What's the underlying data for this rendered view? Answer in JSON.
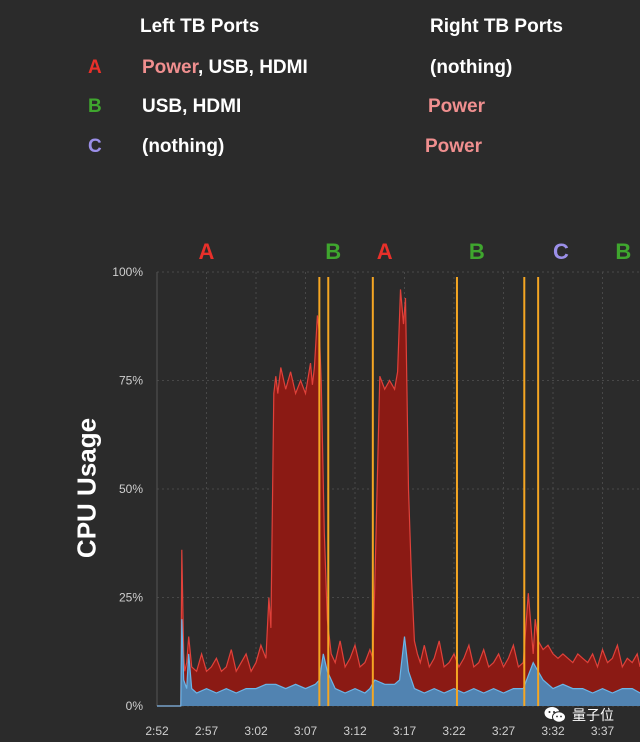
{
  "ports_table": {
    "header_left": "Left TB Ports",
    "header_right": "Right TB Ports",
    "rows": [
      {
        "letter": "A",
        "letter_color": "#e8302a",
        "left_power": "Power",
        "left_rest": ", USB, HDMI",
        "right": "(nothing)",
        "right_is_power": false
      },
      {
        "letter": "B",
        "letter_color": "#3fa62e",
        "left_power": "",
        "left_rest": "USB, HDMI",
        "right": "Power",
        "right_is_power": true
      },
      {
        "letter": "C",
        "letter_color": "#9b8fe8",
        "left_power": "",
        "left_rest": "(nothing)",
        "right": "Power",
        "right_is_power": true
      }
    ]
  },
  "watermark": {
    "text": "量子位",
    "icon": "wechat-icon"
  },
  "chart_data": {
    "type": "area",
    "ylabel": "CPU Usage",
    "x_ticks": [
      "2:52",
      "2:57",
      "3:02",
      "3:07",
      "3:12",
      "3:17",
      "3:22",
      "3:27",
      "3:32",
      "3:37"
    ],
    "y_ticks": [
      "0%",
      "25%",
      "50%",
      "75%",
      "100%"
    ],
    "ylim": [
      0,
      100
    ],
    "x_unit": "minutes since 2:52",
    "xlim": [
      0,
      48.8
    ],
    "grid": true,
    "colors": {
      "total": "#8b1a14",
      "total_line": "#e0413a",
      "base": "#4a8fc2",
      "base_line": "#6bb6e8",
      "marker": "#f5a623"
    },
    "phase_labels": [
      {
        "text": "A",
        "x": 5,
        "color": "#e8302a"
      },
      {
        "text": "B",
        "x": 17.8,
        "color": "#3fa62e"
      },
      {
        "text": "A",
        "x": 23,
        "color": "#e8302a"
      },
      {
        "text": "B",
        "x": 32.3,
        "color": "#3fa62e"
      },
      {
        "text": "C",
        "x": 40.8,
        "color": "#9b8fe8"
      },
      {
        "text": "B",
        "x": 47.1,
        "color": "#3fa62e"
      }
    ],
    "markers_x": [
      16.4,
      17.3,
      21.8,
      30.3,
      37.1,
      38.5
    ],
    "series": [
      {
        "name": "total",
        "x": [
          0,
          2.4,
          2.5,
          2.7,
          2.8,
          3,
          3.2,
          3.5,
          4,
          4.5,
          5,
          5.5,
          6,
          6.5,
          7,
          7.5,
          8,
          8.5,
          9,
          9.5,
          10,
          10.5,
          11,
          11.3,
          11.5,
          11.8,
          12,
          12.2,
          12.5,
          13,
          13.5,
          14,
          14.5,
          15,
          15.5,
          15.7,
          15.9,
          16.2,
          16.4,
          16.6,
          16.9,
          17.2,
          17.6,
          18,
          18.5,
          19,
          19.5,
          20,
          20.5,
          21,
          21.5,
          21.8,
          22,
          22.5,
          23,
          23.5,
          24,
          24.3,
          24.6,
          24.9,
          25.1,
          25.4,
          25.7,
          26,
          26.3,
          26.6,
          27,
          27.5,
          28,
          28.5,
          29,
          29.5,
          30,
          30.5,
          31,
          31.5,
          32,
          32.5,
          33,
          33.5,
          34,
          34.5,
          35,
          35.5,
          36,
          36.5,
          37,
          37.5,
          38,
          38.2,
          38.5,
          39,
          39.5,
          40,
          40.5,
          41,
          41.5,
          42,
          42.5,
          43,
          43.5,
          44,
          44.5,
          45,
          45.5,
          46,
          46.5,
          47,
          47.5,
          48,
          48.5,
          48.8
        ],
        "values": [
          0,
          0,
          36,
          12,
          8,
          10,
          16,
          9,
          8,
          12,
          8,
          9,
          11,
          8,
          9,
          13,
          8,
          10,
          12,
          8,
          10,
          14,
          11,
          25,
          18,
          72,
          76,
          72,
          78,
          73,
          77,
          72,
          75,
          72,
          79,
          74,
          78,
          90,
          86,
          74,
          40,
          20,
          12,
          10,
          15,
          9,
          11,
          14,
          9,
          10,
          13,
          11,
          28,
          76,
          73,
          75,
          73,
          77,
          96,
          88,
          94,
          50,
          30,
          15,
          12,
          10,
          14,
          9,
          11,
          15,
          9,
          10,
          12,
          9,
          11,
          14,
          9,
          10,
          13,
          9,
          10,
          12,
          9,
          11,
          14,
          9,
          10,
          26,
          12,
          20,
          15,
          13,
          14,
          12,
          11,
          12,
          11,
          10,
          12,
          11,
          10,
          12,
          9,
          13,
          10,
          11,
          14,
          9,
          11,
          10,
          12,
          9
        ]
      },
      {
        "name": "base",
        "x": [
          0,
          2.4,
          2.5,
          2.7,
          3,
          3.2,
          3.5,
          4,
          5,
          6,
          7,
          8,
          9,
          10,
          11,
          12,
          13,
          14,
          15,
          16,
          16.4,
          16.8,
          17.2,
          18,
          19,
          20,
          21,
          21.5,
          22,
          23,
          24,
          24.5,
          25,
          25.4,
          26,
          27,
          28,
          29,
          30,
          31,
          32,
          33,
          34,
          35,
          36,
          37,
          38,
          39,
          40,
          41,
          42,
          43,
          44,
          45,
          46,
          47,
          48,
          48.8
        ],
        "values": [
          0,
          0,
          20,
          6,
          4,
          12,
          4,
          3,
          4,
          3,
          4,
          3,
          4,
          4,
          5,
          5,
          4,
          5,
          4,
          5,
          6,
          12,
          8,
          4,
          3,
          4,
          3,
          4,
          6,
          5,
          5,
          6,
          16,
          8,
          4,
          3,
          4,
          3,
          4,
          3,
          4,
          3,
          4,
          3,
          4,
          4,
          10,
          6,
          4,
          5,
          4,
          4,
          3,
          4,
          3,
          4,
          4,
          3
        ]
      }
    ]
  }
}
